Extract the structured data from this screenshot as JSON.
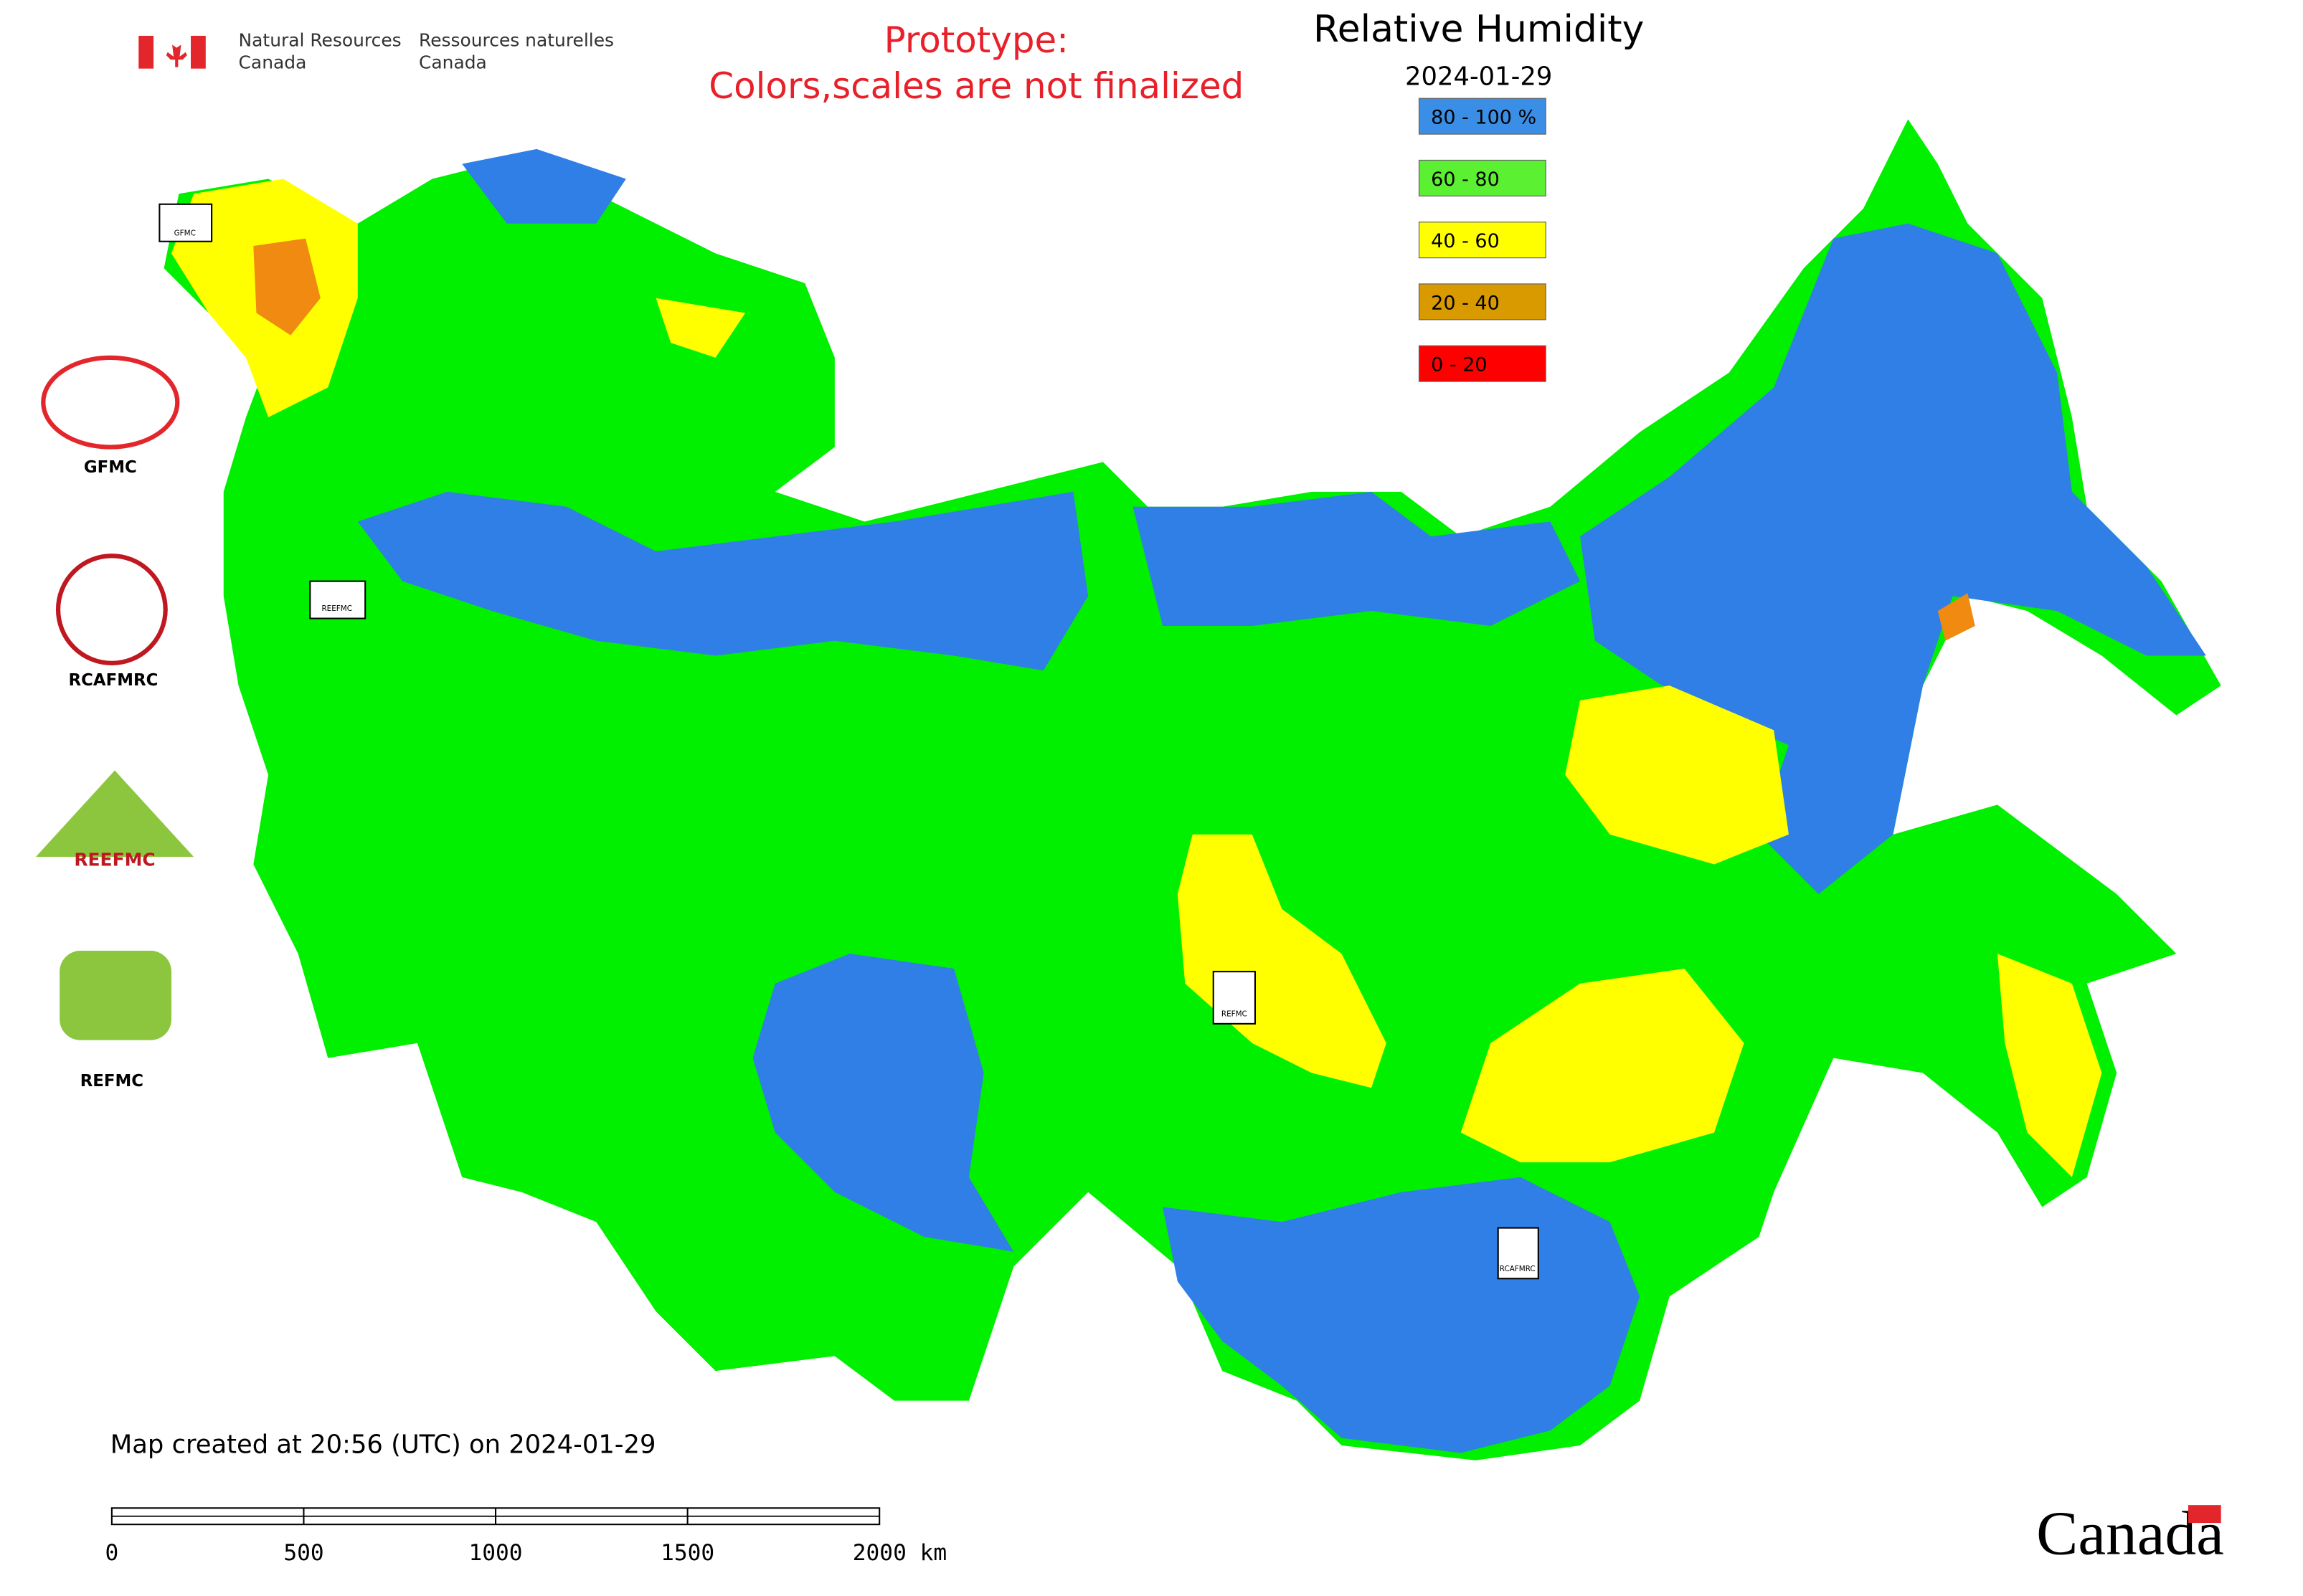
{
  "header": {
    "agency_en": "Natural Resources",
    "agency_en_2": "Canada",
    "agency_fr": "Ressources naturelles",
    "agency_fr_2": "Canada"
  },
  "notice": {
    "line1": "Prototype:",
    "line2": "Colors,scales are not finalized"
  },
  "map": {
    "title": "Relative Humidity",
    "date": "2024-01-29",
    "legend": [
      {
        "label": "80 - 100 %",
        "color": "#3a8ee6"
      },
      {
        "label": "60 - 80",
        "color": "#5cf033"
      },
      {
        "label": "40 - 60",
        "color": "#ffff00"
      },
      {
        "label": "20 - 40",
        "color": "#d99a00"
      },
      {
        "label": "0 - 20",
        "color": "#ff0000"
      }
    ],
    "created": "Map created at 20:56 (UTC) on 2024-01-29",
    "scale_labels": [
      "0",
      "500",
      "1000",
      "1500",
      "2000 km"
    ]
  },
  "logos": [
    "GFMC",
    "RCAFMRC",
    "REEFMC",
    "REFMC"
  ],
  "wordmark": "Canada"
}
